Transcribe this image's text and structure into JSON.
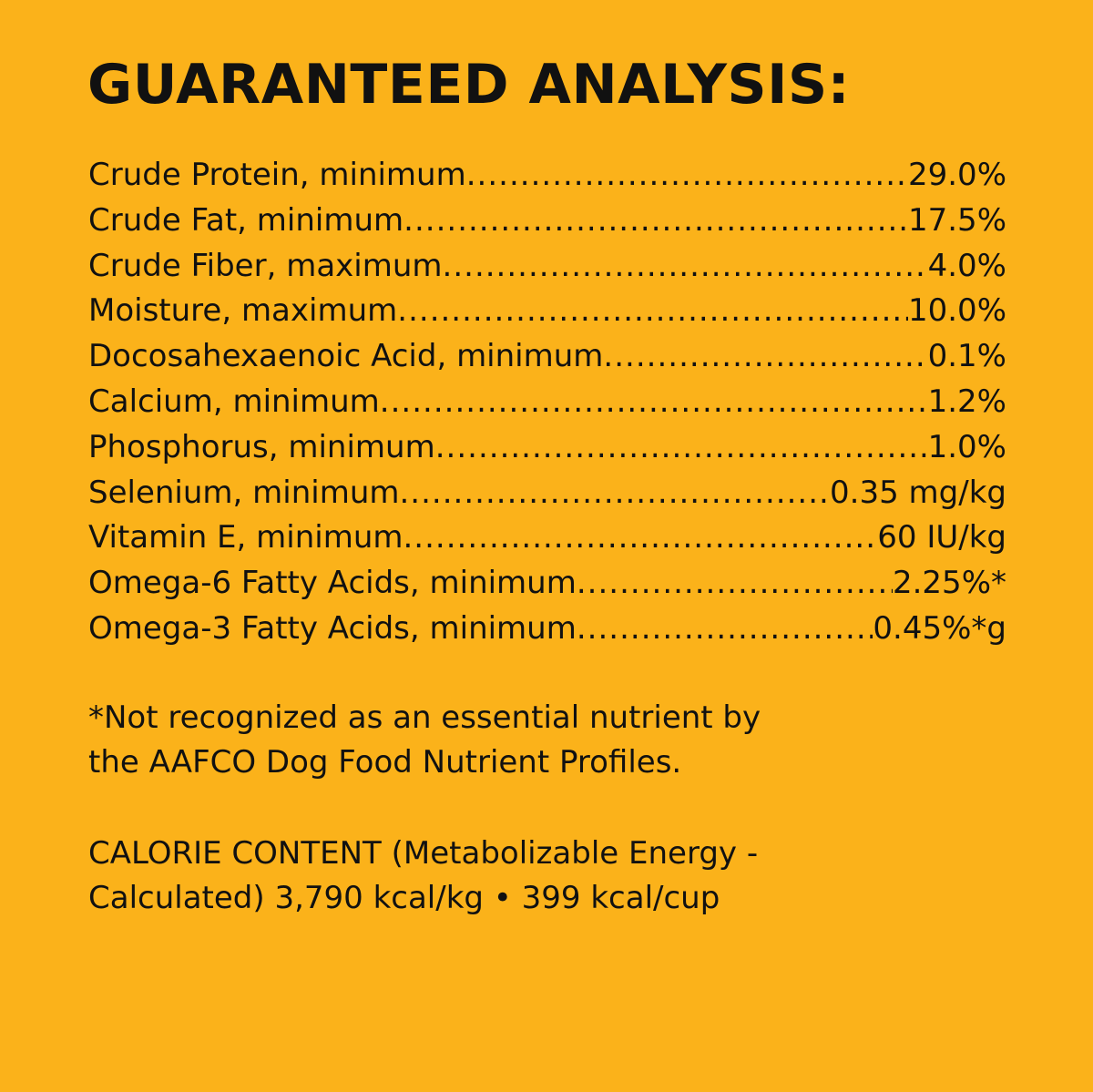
{
  "title": "GUARANTEED ANALYSIS:",
  "analysis": [
    {
      "label": "Crude Protein, minimum",
      "value": "29.0%"
    },
    {
      "label": "Crude Fat, minimum",
      "value": "17.5%"
    },
    {
      "label": "Crude Fiber, maximum",
      "value": "4.0%"
    },
    {
      "label": "Moisture, maximum",
      "value": "10.0%"
    },
    {
      "label": "Docosahexaenoic Acid, minimum",
      "value": "0.1%"
    },
    {
      "label": "Calcium, minimum",
      "value": "1.2%"
    },
    {
      "label": "Phosphorus, minimum",
      "value": "1.0%"
    },
    {
      "label": "Selenium, minimum",
      "value": "0.35 mg/kg"
    },
    {
      "label": "Vitamin E, minimum",
      "value": "60 IU/kg"
    },
    {
      "label": "Omega-6 Fatty Acids, minimum",
      "value": "2.25%*"
    },
    {
      "label": "Omega-3 Fatty Acids, minimum",
      "value": "0.45%*g"
    }
  ],
  "footnote": [
    "*Not recognized as an essential nutrient by",
    "the AAFCO Dog Food Nutrient Profiles."
  ],
  "calorie": [
    "CALORIE CONTENT (Metabolizable Energy -",
    "Calculated) 3,790 kcal/kg • 399 kcal/cup"
  ],
  "colors": {
    "background": "#FBB21A",
    "text": "#111111"
  }
}
